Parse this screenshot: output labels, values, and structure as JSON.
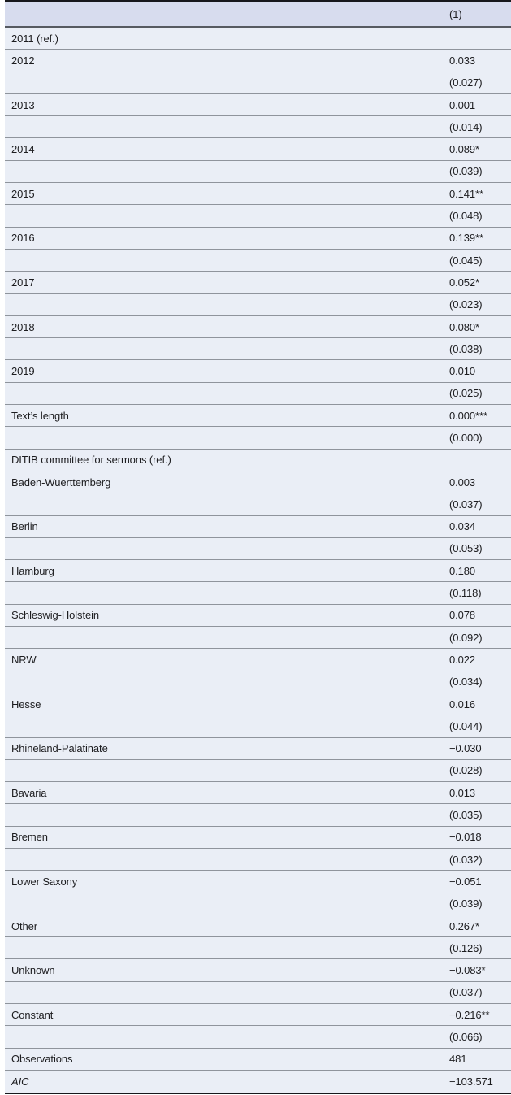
{
  "table": {
    "description": "Regression results table, single model column",
    "colors": {
      "header_bg": "#d7dcee",
      "row_bg": "#eaeef6",
      "outer_border": "#17181c",
      "header_rule": "#565a61",
      "row_rule": "#8f949c",
      "text": "#1d1d20"
    },
    "header": {
      "label": "",
      "value": "(1)"
    },
    "rows": [
      {
        "label": "2011 (ref.)",
        "value": ""
      },
      {
        "label": "2012",
        "value": "0.033"
      },
      {
        "label": "",
        "value": "(0.027)"
      },
      {
        "label": "2013",
        "value": "0.001"
      },
      {
        "label": "",
        "value": "(0.014)"
      },
      {
        "label": "2014",
        "value": "0.089*"
      },
      {
        "label": "",
        "value": "(0.039)"
      },
      {
        "label": "2015",
        "value": "0.141**"
      },
      {
        "label": "",
        "value": "(0.048)"
      },
      {
        "label": "2016",
        "value": "0.139**"
      },
      {
        "label": "",
        "value": "(0.045)"
      },
      {
        "label": "2017",
        "value": "0.052*"
      },
      {
        "label": "",
        "value": "(0.023)"
      },
      {
        "label": "2018",
        "value": "0.080*"
      },
      {
        "label": "",
        "value": "(0.038)"
      },
      {
        "label": "2019",
        "value": "0.010"
      },
      {
        "label": "",
        "value": "(0.025)"
      },
      {
        "label": "Text’s length",
        "value": "0.000***"
      },
      {
        "label": "",
        "value": "(0.000)"
      },
      {
        "label": "DITIB committee for sermons (ref.)",
        "value": ""
      },
      {
        "label": "Baden-Wuerttemberg",
        "value": "0.003"
      },
      {
        "label": "",
        "value": "(0.037)"
      },
      {
        "label": "Berlin",
        "value": "0.034"
      },
      {
        "label": "",
        "value": "(0.053)"
      },
      {
        "label": "Hamburg",
        "value": "0.180"
      },
      {
        "label": "",
        "value": "(0.118)"
      },
      {
        "label": "Schleswig-Holstein",
        "value": "0.078"
      },
      {
        "label": "",
        "value": "(0.092)"
      },
      {
        "label": "NRW",
        "value": "0.022"
      },
      {
        "label": "",
        "value": "(0.034)"
      },
      {
        "label": "Hesse",
        "value": "0.016"
      },
      {
        "label": "",
        "value": "(0.044)"
      },
      {
        "label": "Rhineland-Palatinate",
        "value": "−0.030"
      },
      {
        "label": "",
        "value": "(0.028)"
      },
      {
        "label": "Bavaria",
        "value": "0.013"
      },
      {
        "label": "",
        "value": "(0.035)"
      },
      {
        "label": "Bremen",
        "value": "−0.018"
      },
      {
        "label": "",
        "value": "(0.032)"
      },
      {
        "label": "Lower Saxony",
        "value": "−0.051"
      },
      {
        "label": "",
        "value": "(0.039)"
      },
      {
        "label": "Other",
        "value": "0.267*"
      },
      {
        "label": "",
        "value": "(0.126)"
      },
      {
        "label": "Unknown",
        "value": "−0.083*"
      },
      {
        "label": "",
        "value": "(0.037)"
      },
      {
        "label": "Constant",
        "value": "−0.216**"
      },
      {
        "label": "",
        "value": "(0.066)"
      },
      {
        "label": "Observations",
        "value": "481"
      },
      {
        "label": "AIC",
        "value": "−103.571",
        "italic": true
      }
    ]
  }
}
